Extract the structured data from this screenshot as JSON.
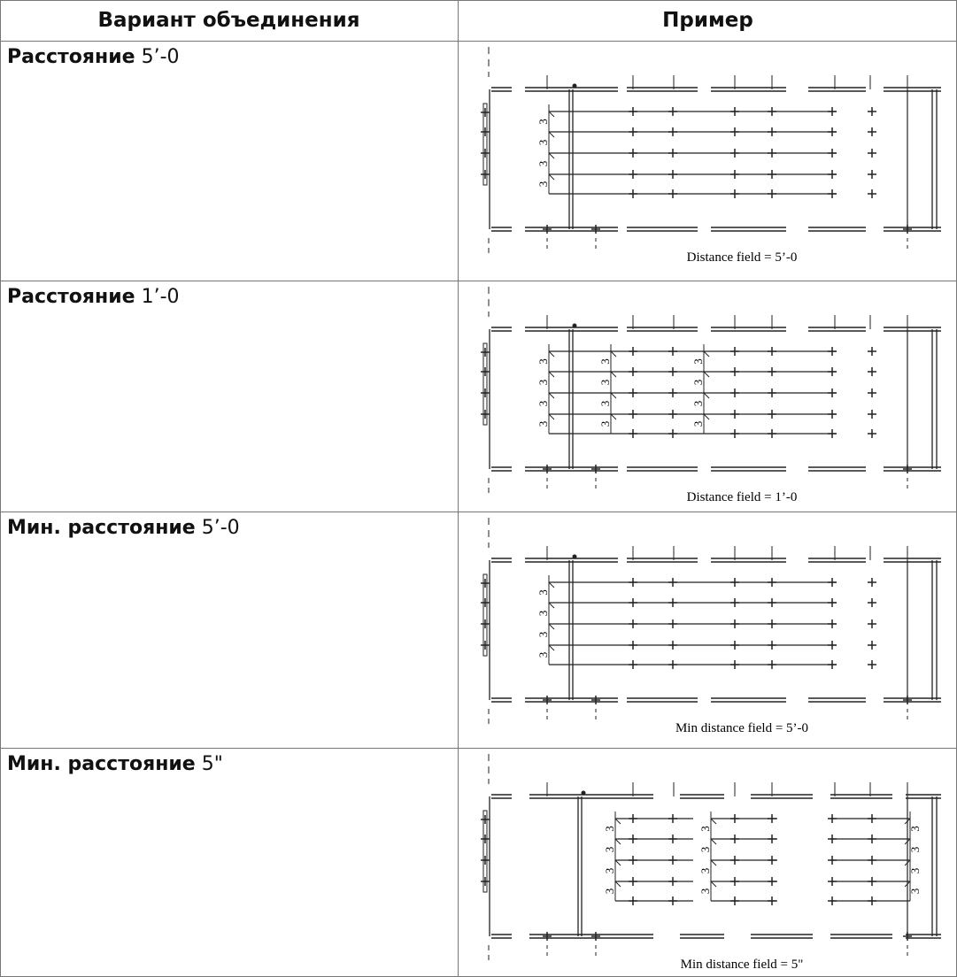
{
  "header": [
    "Вариант объединения",
    "Пример"
  ],
  "rows": [
    {
      "label_bold": "Расстояние",
      "label_value": "5’-0",
      "caption": "Distance field = 5’-0",
      "dim_label": "3"
    },
    {
      "label_bold": "Расстояние",
      "label_value": "1’-0",
      "caption": "Distance field = 1’-0",
      "dim_label": "3"
    },
    {
      "label_bold": "Мин. расстояние",
      "label_value": "5’-0",
      "caption": "Min distance field = 5’-0",
      "dim_label": "3"
    },
    {
      "label_bold": "Мин. расстояние",
      "label_value": "5\"",
      "caption": "Min distance field = 5\"",
      "dim_label": "3"
    }
  ]
}
